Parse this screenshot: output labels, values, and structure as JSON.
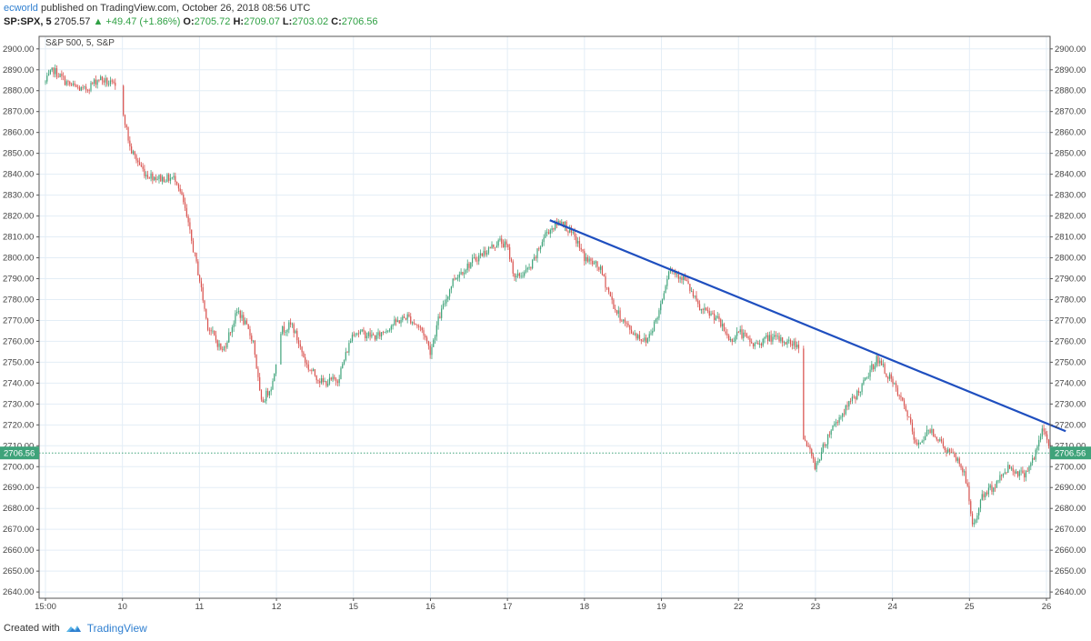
{
  "header": {
    "user": "ecworld",
    "published": "published on TradingView.com, October 26, 2018 08:56 UTC",
    "symbol": "SP:SPX, 5",
    "last": "2705.57",
    "change": "▲ +49.47 (+1.86%)",
    "o_label": "O:",
    "o_value": "2705.72",
    "h_label": "H:",
    "h_value": "2709.07",
    "l_label": "L:",
    "l_value": "2703.02",
    "c_label": "C:",
    "c_value": "2706.56"
  },
  "footer": {
    "created": "Created with",
    "brand": "TradingView"
  },
  "chart_data": {
    "type": "candlestick",
    "symbol_label": "S&P 500, 5, S&P",
    "ylim": [
      2637,
      2906
    ],
    "y_ticks": [
      2640,
      2650,
      2660,
      2670,
      2680,
      2690,
      2700,
      2710,
      2720,
      2730,
      2740,
      2750,
      2760,
      2770,
      2780,
      2790,
      2800,
      2810,
      2820,
      2830,
      2840,
      2850,
      2860,
      2870,
      2880,
      2890,
      2900
    ],
    "x_ticks": [
      "15:00",
      "10",
      "11",
      "12",
      "15",
      "16",
      "17",
      "18",
      "19",
      "22",
      "23",
      "24",
      "25",
      "26"
    ],
    "last_price": 2706.56,
    "last_price_label": "2706.56",
    "path_anchors": [
      [
        0,
        2884
      ],
      [
        0.1,
        2890
      ],
      [
        0.3,
        2883
      ],
      [
        0.5,
        2880
      ],
      [
        0.7,
        2886
      ],
      [
        0.9,
        2882
      ],
      [
        1.0,
        2872
      ],
      [
        1.1,
        2852
      ],
      [
        1.3,
        2840
      ],
      [
        1.5,
        2838
      ],
      [
        1.7,
        2838
      ],
      [
        1.8,
        2825
      ],
      [
        2.0,
        2790
      ],
      [
        2.1,
        2768
      ],
      [
        2.3,
        2755
      ],
      [
        2.5,
        2775
      ],
      [
        2.7,
        2760
      ],
      [
        2.8,
        2730
      ],
      [
        2.95,
        2740
      ],
      [
        3.05,
        2765
      ],
      [
        3.2,
        2768
      ],
      [
        3.4,
        2748
      ],
      [
        3.6,
        2740
      ],
      [
        3.8,
        2742
      ],
      [
        4.0,
        2765
      ],
      [
        4.3,
        2762
      ],
      [
        4.5,
        2768
      ],
      [
        4.7,
        2772
      ],
      [
        4.9,
        2765
      ],
      [
        5.0,
        2755
      ],
      [
        5.1,
        2770
      ],
      [
        5.3,
        2790
      ],
      [
        5.6,
        2800
      ],
      [
        5.9,
        2808
      ],
      [
        6.0,
        2805
      ],
      [
        6.1,
        2790
      ],
      [
        6.3,
        2795
      ],
      [
        6.5,
        2812
      ],
      [
        6.7,
        2818
      ],
      [
        6.9,
        2808
      ],
      [
        7.0,
        2800
      ],
      [
        7.2,
        2795
      ],
      [
        7.4,
        2775
      ],
      [
        7.6,
        2765
      ],
      [
        7.8,
        2760
      ],
      [
        7.95,
        2772
      ],
      [
        8.1,
        2795
      ],
      [
        8.3,
        2790
      ],
      [
        8.5,
        2775
      ],
      [
        8.7,
        2772
      ],
      [
        8.9,
        2760
      ],
      [
        9.0,
        2765
      ],
      [
        9.2,
        2758
      ],
      [
        9.4,
        2762
      ],
      [
        9.6,
        2760
      ],
      [
        9.8,
        2758
      ],
      [
        9.83,
        2716
      ],
      [
        10.0,
        2700
      ],
      [
        10.2,
        2718
      ],
      [
        10.4,
        2728
      ],
      [
        10.6,
        2738
      ],
      [
        10.8,
        2752
      ],
      [
        11.0,
        2740
      ],
      [
        11.2,
        2725
      ],
      [
        11.3,
        2710
      ],
      [
        11.5,
        2718
      ],
      [
        11.7,
        2708
      ],
      [
        11.85,
        2703
      ],
      [
        11.95,
        2695
      ],
      [
        12.05,
        2670
      ],
      [
        12.15,
        2685
      ],
      [
        12.35,
        2692
      ],
      [
        12.5,
        2700
      ],
      [
        12.7,
        2696
      ],
      [
        12.85,
        2705
      ],
      [
        12.95,
        2718
      ],
      [
        13.0,
        2715
      ],
      [
        13.05,
        2705
      ]
    ],
    "trendline": {
      "from": [
        6.55,
        2818
      ],
      "to": [
        13.25,
        2717
      ]
    }
  }
}
